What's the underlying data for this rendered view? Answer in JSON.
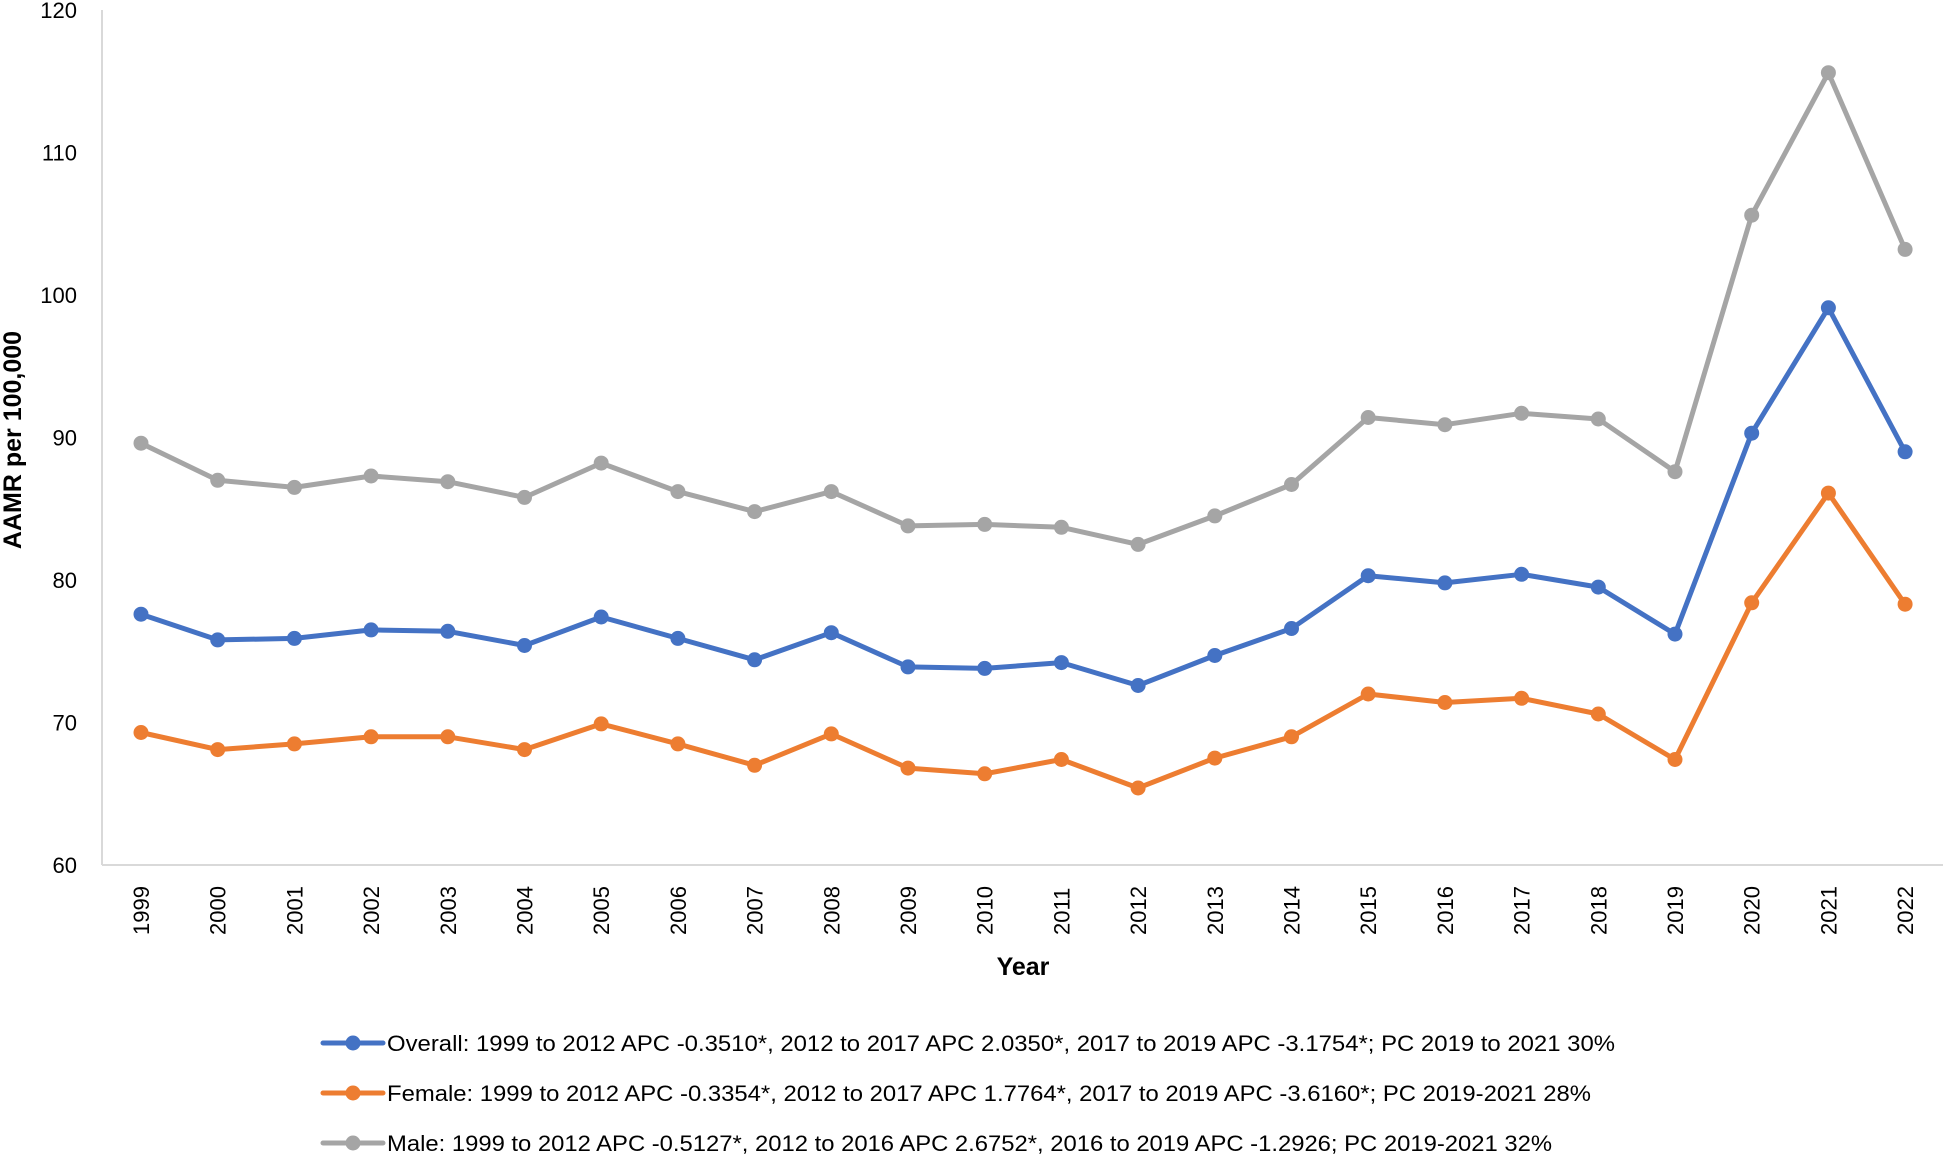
{
  "chart_data": {
    "type": "line",
    "title": "",
    "xlabel": "Year",
    "ylabel": "AAMR per 100,000",
    "ylim": [
      60,
      120
    ],
    "yticks": [
      60,
      70,
      80,
      90,
      100,
      110,
      120
    ],
    "ytick_labels": [
      "60",
      "70",
      "80",
      "90",
      "100",
      "110",
      "120"
    ],
    "grid": false,
    "legend_position": "bottom",
    "categories": [
      "1999",
      "2000",
      "2001",
      "2002",
      "2003",
      "2004",
      "2005",
      "2006",
      "2007",
      "2008",
      "2009",
      "2010",
      "2011",
      "2012",
      "2013",
      "2014",
      "2015",
      "2016",
      "2017",
      "2018",
      "2019",
      "2020",
      "2021",
      "2022"
    ],
    "series": [
      {
        "name": "Overall: 1999 to 2012 APC -0.3510*, 2012 to 2017 APC 2.0350*, 2017 to 2019 APC -3.1754*; PC 2019 to 2021 30%",
        "color": "#4472C4",
        "values": [
          77.6,
          75.8,
          75.9,
          76.5,
          76.4,
          75.4,
          77.4,
          75.9,
          74.4,
          76.3,
          73.9,
          73.8,
          74.2,
          72.6,
          74.7,
          76.6,
          80.3,
          79.8,
          80.4,
          79.5,
          76.2,
          90.3,
          99.1,
          89.0
        ]
      },
      {
        "name": "Female: 1999 to 2012 APC -0.3354*, 2012 to 2017 APC 1.7764*, 2017 to 2019 APC -3.6160*; PC 2019-2021 28%",
        "color": "#ED7D31",
        "values": [
          69.3,
          68.1,
          68.5,
          69.0,
          69.0,
          68.1,
          69.9,
          68.5,
          67.0,
          69.2,
          66.8,
          66.4,
          67.4,
          65.4,
          67.5,
          69.0,
          72.0,
          71.4,
          71.7,
          70.6,
          67.4,
          78.4,
          86.1,
          78.3
        ]
      },
      {
        "name": "Male: 1999 to 2012 APC -0.5127*, 2012 to 2016 APC 2.6752*, 2016 to 2019 APC -1.2926; PC 2019-2021 32%",
        "color": "#A5A5A5",
        "values": [
          89.6,
          87.0,
          86.5,
          87.3,
          86.9,
          85.8,
          88.2,
          86.2,
          84.8,
          86.2,
          83.8,
          83.9,
          83.7,
          82.5,
          84.5,
          86.7,
          91.4,
          90.9,
          91.7,
          91.3,
          87.6,
          105.6,
          115.6,
          103.2
        ]
      }
    ],
    "axis_color": "#D9D9D9"
  }
}
